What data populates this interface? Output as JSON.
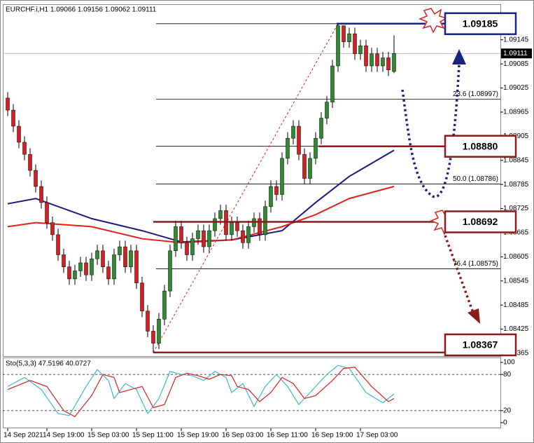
{
  "chart_data": [
    {
      "type": "candlestick",
      "title": "EURCHF.i,H1  1.09066 1.09156 1.09062 1.09111",
      "categories": [
        "14 Sep 2021",
        null,
        null,
        null,
        null,
        null,
        null,
        "14 Sep 19:00",
        null,
        null,
        null,
        null,
        null,
        null,
        null,
        "15 Sep 03:00",
        null,
        null,
        null,
        null,
        null,
        null,
        null,
        "15 Sep 11:00",
        null,
        null,
        null,
        null,
        null,
        null,
        null,
        "15 Sep 19:00",
        null,
        null,
        null,
        null,
        null,
        null,
        null,
        "16 Sep 03:00",
        null,
        null,
        null,
        null,
        null,
        null,
        null,
        "16 Sep 11:00",
        null,
        null,
        null,
        null,
        null,
        null,
        null,
        "16 Sep 19:00",
        null,
        null,
        null,
        null,
        null,
        null,
        null,
        "17 Sep 03:00",
        null,
        null,
        null,
        null,
        null,
        null
      ],
      "open": [
        1.09,
        1.0897,
        1.0893,
        1.0889,
        1.0886,
        1.0882,
        1.0878,
        1.0874,
        1.0869,
        1.0866,
        1.0861,
        1.0858,
        1.0855,
        1.0857,
        1.0859,
        1.0856,
        1.086,
        1.0862,
        1.0858,
        1.0855,
        1.0861,
        1.0863,
        1.0858,
        1.0862,
        1.0854,
        1.0847,
        1.0842,
        1.0839,
        1.0845,
        1.0852,
        1.0862,
        1.0868,
        1.0864,
        1.0861,
        1.0865,
        1.0867,
        1.0863,
        1.0867,
        1.087,
        1.0872,
        1.0866,
        1.0869,
        1.0867,
        1.0864,
        1.0868,
        1.087,
        1.0866,
        1.0873,
        1.0878,
        1.0876,
        1.0885,
        1.089,
        1.0893,
        1.0886,
        1.088,
        1.0885,
        1.089,
        1.0895,
        1.0899,
        1.0908,
        1.0918,
        1.0914,
        1.0916,
        1.0911,
        1.0913,
        1.0908,
        1.0911,
        1.0908,
        1.091,
        1.09066
      ],
      "high": [
        1.09015,
        1.08985,
        1.08945,
        1.08905,
        1.08875,
        1.08835,
        1.08795,
        1.08755,
        1.08705,
        1.08675,
        1.08625,
        1.08595,
        1.08585,
        1.08605,
        1.08605,
        1.08615,
        1.08635,
        1.08635,
        1.08595,
        1.08625,
        1.08645,
        1.08645,
        1.08635,
        1.08635,
        1.08555,
        1.08485,
        1.08435,
        1.08465,
        1.08535,
        1.08635,
        1.08695,
        1.08695,
        1.08655,
        1.08665,
        1.08685,
        1.08685,
        1.08685,
        1.08715,
        1.08735,
        1.08735,
        1.08705,
        1.08705,
        1.08685,
        1.08695,
        1.08715,
        1.08715,
        1.08745,
        1.08795,
        1.08795,
        1.08865,
        1.08915,
        1.08945,
        1.08945,
        1.08875,
        1.08865,
        1.08915,
        1.08965,
        1.09005,
        1.09095,
        1.09185,
        1.0918,
        1.09175,
        1.09175,
        1.09145,
        1.09145,
        1.09125,
        1.09125,
        1.09115,
        1.09115,
        1.09156
      ],
      "low": [
        1.08955,
        1.08915,
        1.08875,
        1.08845,
        1.08805,
        1.08765,
        1.08725,
        1.08675,
        1.08645,
        1.08595,
        1.08565,
        1.08535,
        1.08535,
        1.08555,
        1.08545,
        1.08545,
        1.08585,
        1.08565,
        1.08535,
        1.08535,
        1.08595,
        1.08565,
        1.08565,
        1.08525,
        1.08455,
        1.08405,
        1.08367,
        1.08375,
        1.08435,
        1.08505,
        1.08605,
        1.08625,
        1.08595,
        1.08595,
        1.08635,
        1.08615,
        1.08615,
        1.08655,
        1.08685,
        1.08645,
        1.08645,
        1.08655,
        1.08625,
        1.08625,
        1.08665,
        1.08645,
        1.08645,
        1.08715,
        1.08745,
        1.08745,
        1.08835,
        1.08885,
        1.08845,
        1.08785,
        1.08785,
        1.08835,
        1.08885,
        1.08935,
        1.08975,
        1.09065,
        1.09125,
        1.09125,
        1.09095,
        1.09095,
        1.09065,
        1.09065,
        1.09065,
        1.09065,
        1.09055,
        1.09062
      ],
      "close": [
        1.0897,
        1.0893,
        1.0889,
        1.0886,
        1.0882,
        1.0878,
        1.0874,
        1.0869,
        1.0866,
        1.0861,
        1.0858,
        1.0855,
        1.0857,
        1.0859,
        1.0856,
        1.086,
        1.0862,
        1.0858,
        1.0855,
        1.0861,
        1.0863,
        1.0858,
        1.0862,
        1.0854,
        1.0847,
        1.0842,
        1.0839,
        1.0845,
        1.0852,
        1.0862,
        1.0868,
        1.0864,
        1.0861,
        1.0865,
        1.0867,
        1.0863,
        1.0867,
        1.087,
        1.0872,
        1.0866,
        1.0869,
        1.0867,
        1.0864,
        1.0868,
        1.087,
        1.0866,
        1.0873,
        1.0878,
        1.0876,
        1.0885,
        1.089,
        1.0893,
        1.0886,
        1.088,
        1.0885,
        1.089,
        1.0895,
        1.0899,
        1.0908,
        1.0918,
        1.0914,
        1.0916,
        1.0911,
        1.0913,
        1.0908,
        1.0911,
        1.0908,
        1.091,
        1.0907,
        1.09111
      ],
      "bull_color": "#2e8b2e",
      "bear_color": "#d42020",
      "ylim": [
        1.08358,
        1.0923
      ],
      "yticks": [
        1.08365,
        1.08425,
        1.08485,
        1.08545,
        1.08605,
        1.08665,
        1.08725,
        1.08785,
        1.08845,
        1.08905,
        1.08965,
        1.09025,
        1.09085,
        1.09145
      ],
      "last_price": 1.09111,
      "overlays": [
        {
          "color": "#1a1a80",
          "x": [
            0,
            5,
            15,
            24,
            31,
            40,
            49,
            55,
            61,
            69
          ],
          "values": [
            1.08737,
            1.0875,
            1.087,
            1.0867,
            1.08642,
            1.08647,
            1.0867,
            1.0874,
            1.08805,
            1.0887
          ]
        },
        {
          "color": "#e0201e",
          "x": [
            0,
            5,
            15,
            24,
            31,
            40,
            49,
            55,
            61,
            69
          ],
          "values": [
            1.0868,
            1.0869,
            1.0868,
            1.0865,
            1.0864,
            1.08647,
            1.0868,
            1.0871,
            1.0875,
            1.0878
          ]
        }
      ],
      "fib_levels": [
        {
          "value": 1.08997,
          "label": "23.6 (1.08997)"
        },
        {
          "value": 1.08786,
          "label": "50.0 (1.08786)"
        },
        {
          "value": 1.08575,
          "label": "76.4 (1.08575)"
        }
      ],
      "key_levels": [
        {
          "value": 1.09185,
          "label": "1.09185",
          "color": "#1a237e"
        },
        {
          "value": 1.0888,
          "label": "1.08880",
          "color": "#8b1a1a"
        },
        {
          "value": 1.08692,
          "label": "1.08692",
          "color": "#8b1a1a"
        },
        {
          "value": 1.08367,
          "label": "1.08367",
          "color": "#8b1a1a"
        }
      ]
    },
    {
      "type": "line",
      "title": "Sto(5,3,3) 47.5196 40.0727",
      "ylim": [
        0,
        100
      ],
      "yticks": [
        0,
        20,
        80,
        100
      ],
      "levels": [
        20,
        80
      ],
      "series": [
        {
          "color": "#3fb8cc",
          "x": [
            0,
            3,
            6,
            9,
            11,
            14,
            16,
            18,
            19,
            21,
            23,
            25,
            27,
            29,
            31,
            33,
            35,
            37,
            39,
            40,
            42,
            44,
            46,
            48,
            50,
            52,
            54,
            57,
            59,
            61,
            64,
            67,
            69
          ],
          "values": [
            60,
            75,
            55,
            15,
            12,
            60,
            88,
            70,
            40,
            65,
            55,
            15,
            40,
            85,
            80,
            78,
            70,
            85,
            75,
            50,
            65,
            27,
            60,
            80,
            60,
            30,
            50,
            80,
            95,
            90,
            50,
            33,
            47.5196
          ]
        },
        {
          "color": "#e02020",
          "x": [
            0,
            4,
            7,
            10,
            12,
            15,
            17,
            19,
            20,
            22,
            24,
            26,
            28,
            30,
            32,
            34,
            36,
            38,
            40,
            41,
            43,
            45,
            47,
            49,
            51,
            53,
            55,
            58,
            60,
            62,
            65,
            68,
            69
          ],
          "values": [
            55,
            70,
            60,
            20,
            10,
            45,
            80,
            75,
            50,
            55,
            60,
            25,
            30,
            75,
            82,
            78,
            72,
            80,
            78,
            60,
            55,
            35,
            50,
            75,
            65,
            40,
            45,
            70,
            90,
            92,
            60,
            35,
            40.0727
          ]
        }
      ]
    }
  ]
}
